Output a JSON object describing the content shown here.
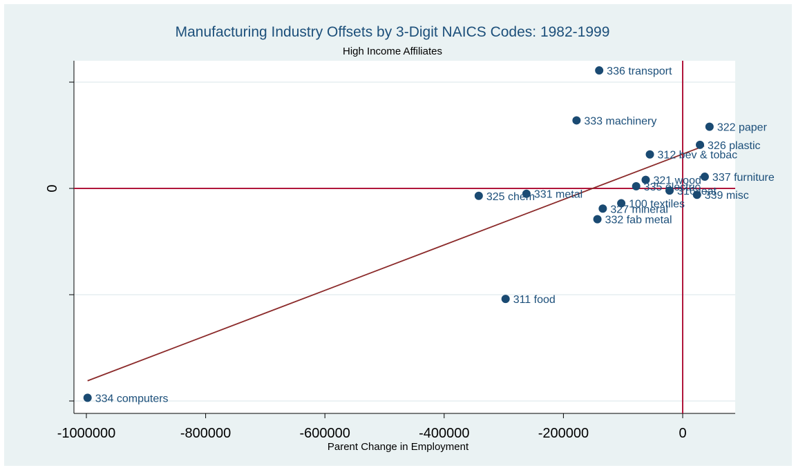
{
  "chart_data": {
    "type": "scatter",
    "title": "Manufacturing Industry Offsets by 3-Digit NAICS Codes: 1982-1999",
    "subtitle": "High Income Affiliates",
    "xlabel": "Parent Change in Employment",
    "ylabel": "",
    "xlim": [
      -1000000,
      60000
    ],
    "ylim": [
      -2.15,
      1.05
    ],
    "x_ticks": [
      -1000000,
      -800000,
      -600000,
      -400000,
      -200000,
      0
    ],
    "x_tick_labels": [
      "-1000000",
      "-800000",
      "-600000",
      "-400000",
      "-200000",
      "0"
    ],
    "y_ticks": [
      -2,
      -1,
      0,
      1
    ],
    "y_tick_labels": [
      "",
      "",
      "0",
      ""
    ],
    "grid": true,
    "colors": {
      "marker": "#1a4a72",
      "fit_line": "#8b2a2a",
      "zero_lines": "#b0153a",
      "frame": "#eaf2f3"
    },
    "points": [
      {
        "label": "336 transport",
        "x": -140000,
        "y": 1.11
      },
      {
        "label": "333 machinery",
        "x": -178000,
        "y": 0.64
      },
      {
        "label": "322 paper",
        "x": 45000,
        "y": 0.58
      },
      {
        "label": "326 plastic",
        "x": 29000,
        "y": 0.41
      },
      {
        "label": "312 bev & tobac",
        "x": -55000,
        "y": 0.32
      },
      {
        "label": "337 furniture",
        "x": 37000,
        "y": 0.11
      },
      {
        "label": "321 wood",
        "x": -62000,
        "y": 0.08
      },
      {
        "label": "335 electric",
        "x": -78000,
        "y": 0.02
      },
      {
        "label": "316 leat",
        "x": -22000,
        "y": -0.02
      },
      {
        "label": "339 misc",
        "x": 24000,
        "y": -0.06
      },
      {
        "label": "331 metal",
        "x": -262000,
        "y": -0.05
      },
      {
        "label": "325 chem",
        "x": -342000,
        "y": -0.07
      },
      {
        "label": "100 textiles",
        "x": -103000,
        "y": -0.14
      },
      {
        "label": "327 mineral",
        "x": -134000,
        "y": -0.19
      },
      {
        "label": "332 fab metal",
        "x": -143000,
        "y": -0.29
      },
      {
        "label": "311 food",
        "x": -297000,
        "y": -1.04
      },
      {
        "label": "334 computers",
        "x": -998000,
        "y": -1.97
      }
    ],
    "fit_line": {
      "x": [
        -998000,
        36000
      ],
      "y": [
        -1.81,
        0.4
      ]
    },
    "reference_lines": {
      "x": 0,
      "y": 0
    }
  }
}
